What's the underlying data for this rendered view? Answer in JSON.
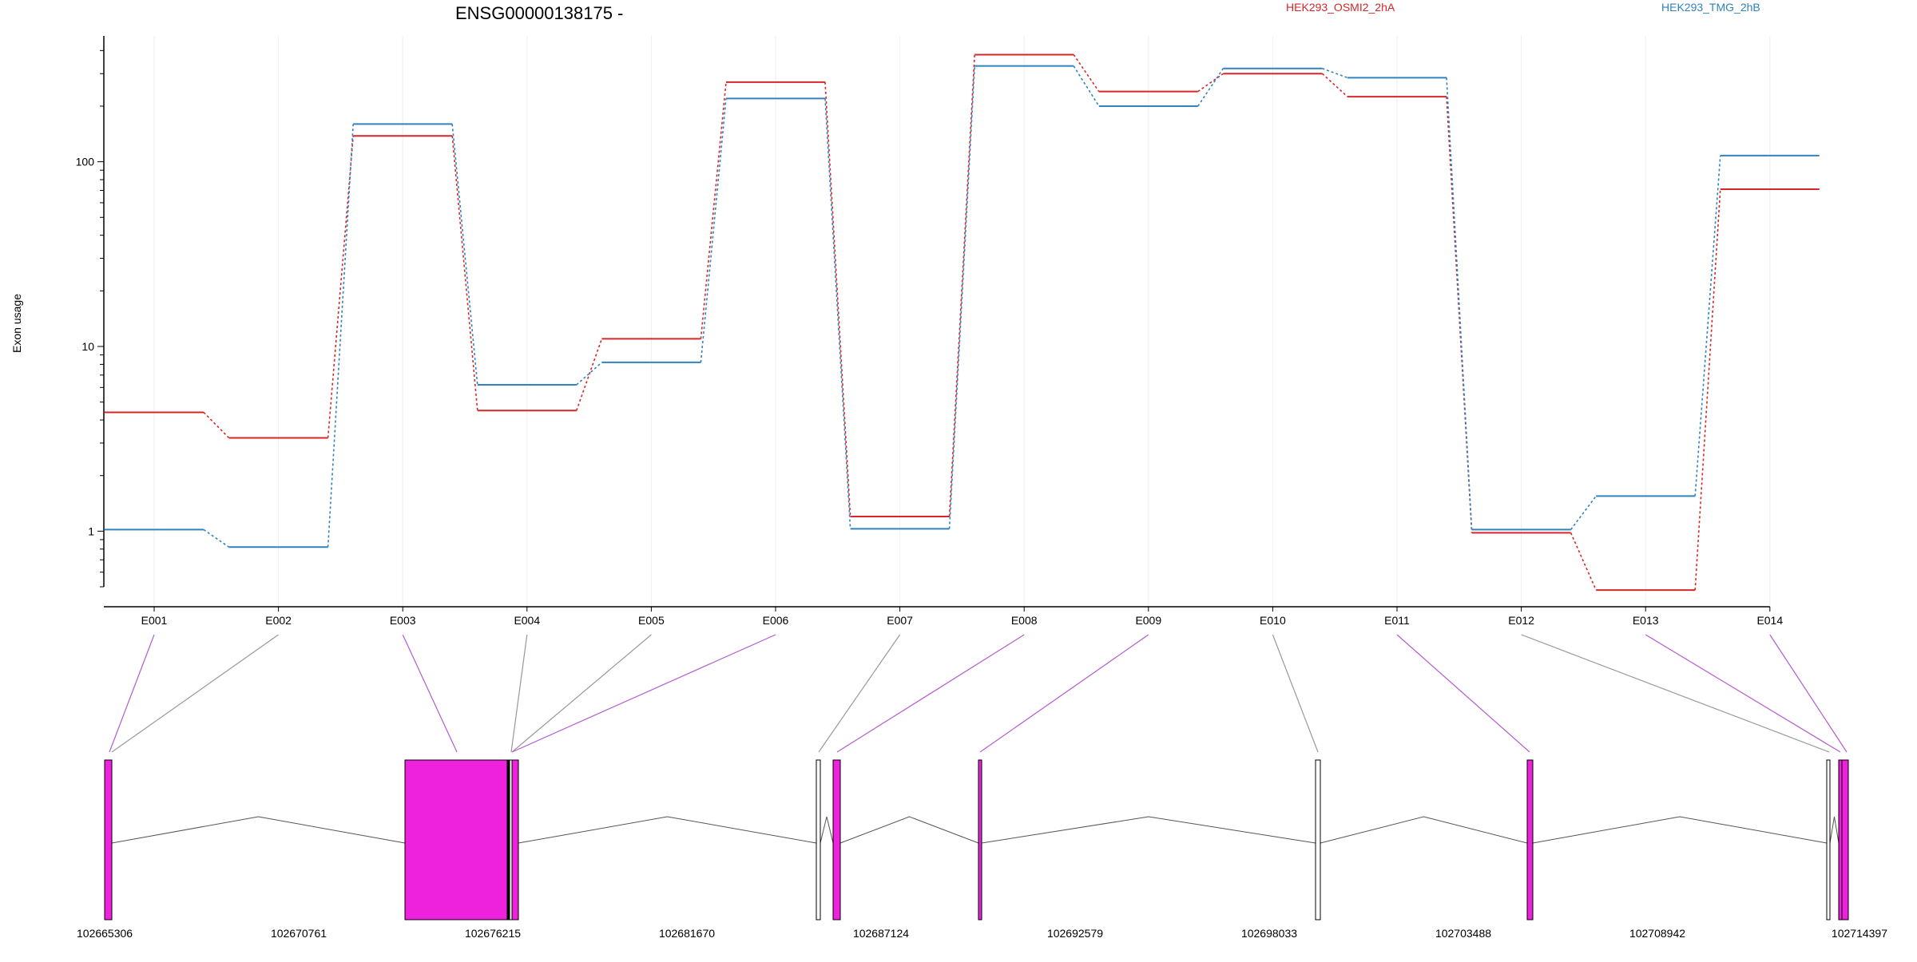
{
  "chart_data": {
    "type": "line",
    "title": "ENSG00000138175 -",
    "ylabel": "Exon usage",
    "xlabel": "",
    "y_scale": "log",
    "ylim": [
      0.5,
      480
    ],
    "y_ticks": [
      {
        "value": 1,
        "label": "1"
      },
      {
        "value": 10,
        "label": "10"
      },
      {
        "value": 100,
        "label": "100"
      }
    ],
    "categories": [
      "E001",
      "E002",
      "E003",
      "E004",
      "E005",
      "E006",
      "E007",
      "E008",
      "E009",
      "E010",
      "E011",
      "E012",
      "E013",
      "E014"
    ],
    "series": [
      {
        "name": "HEK293_OSMI2_2hA",
        "color": "#d62728",
        "values": [
          4.4,
          3.2,
          138,
          4.5,
          11,
          270,
          1.2,
          380,
          240,
          300,
          225,
          0.98,
          0.48,
          71
        ]
      },
      {
        "name": "HEK293_TMG_2hB",
        "color": "#3182bd",
        "values": [
          1.02,
          0.82,
          160,
          6.2,
          8.2,
          220,
          1.03,
          330,
          200,
          320,
          285,
          1.02,
          1.55,
          108
        ]
      }
    ],
    "legend_placement": "top-right",
    "gene_model": {
      "strand": "-",
      "coordinates": [
        "102665306",
        "102670761",
        "102676215",
        "102681670",
        "102687124",
        "102692579",
        "102698033",
        "102703488",
        "102708942",
        "102714397"
      ],
      "exon_highlight_color": "#ee22dd",
      "exon_plain_color": "#ffffff",
      "exon_mapping_highlighted": [
        true,
        false,
        true,
        false,
        false,
        true,
        false,
        true,
        true,
        false,
        true,
        false,
        true,
        true
      ]
    }
  }
}
